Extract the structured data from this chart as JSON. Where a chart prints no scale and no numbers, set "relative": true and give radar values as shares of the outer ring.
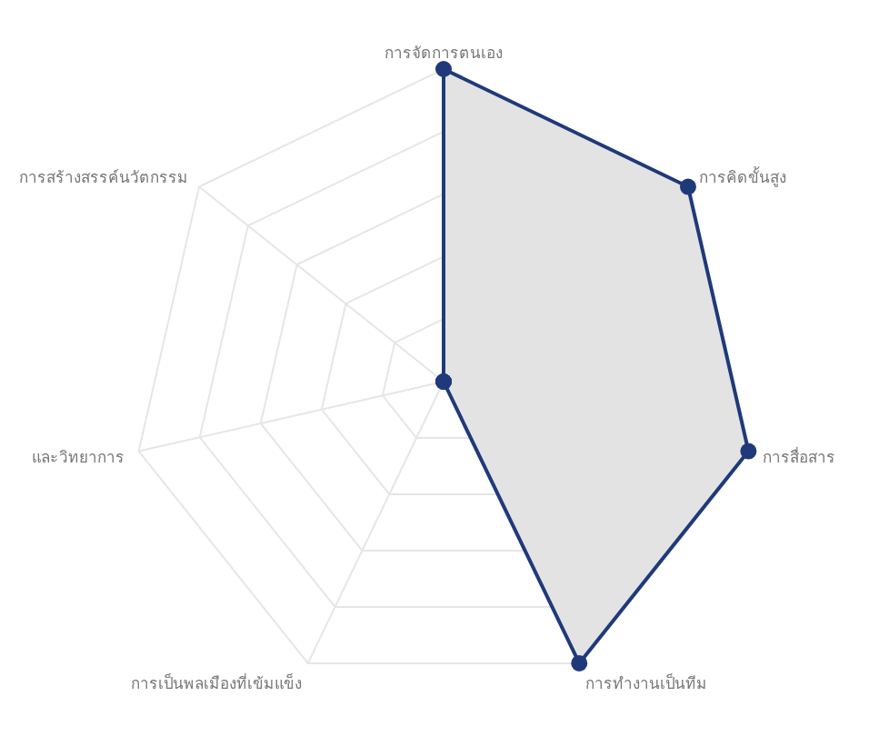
{
  "chart_data": {
    "type": "radar",
    "relative": true,
    "grid": true,
    "marker": "circle",
    "categories": [
      "การจัดการตนเอง",
      "การคิดขั้นสูง",
      "การสื่อสาร",
      "การทำงานเป็นทีม",
      "การเป็นพลเมืองที่เข้มแข็ง",
      "และวิทยาการ",
      "การสร้างสรรค์นวัตกรรม"
    ],
    "series": [
      {
        "color": "#1f3a7a",
        "values": [
          1,
          1,
          1,
          1,
          0,
          0,
          0
        ]
      }
    ]
  }
}
